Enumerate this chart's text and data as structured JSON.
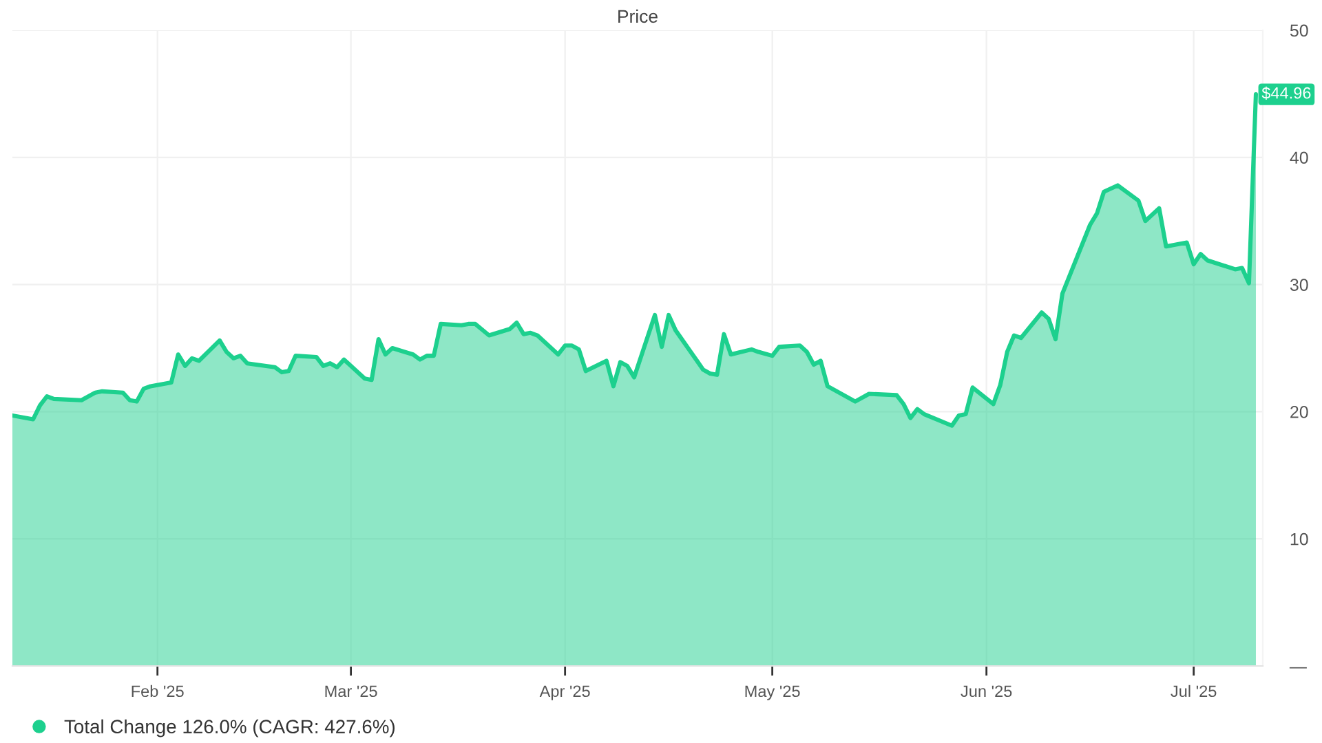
{
  "chart_data": {
    "type": "area",
    "title": "Price",
    "x": [
      "2025-01-11",
      "2025-01-14",
      "2025-01-15",
      "2025-01-16",
      "2025-01-17",
      "2025-01-21",
      "2025-01-23",
      "2025-01-24",
      "2025-01-27",
      "2025-01-28",
      "2025-01-29",
      "2025-01-30",
      "2025-01-31",
      "2025-02-03",
      "2025-02-04",
      "2025-02-05",
      "2025-02-06",
      "2025-02-07",
      "2025-02-10",
      "2025-02-11",
      "2025-02-12",
      "2025-02-13",
      "2025-02-14",
      "2025-02-18",
      "2025-02-19",
      "2025-02-20",
      "2025-02-21",
      "2025-02-24",
      "2025-02-25",
      "2025-02-26",
      "2025-02-27",
      "2025-02-28",
      "2025-03-03",
      "2025-03-04",
      "2025-03-05",
      "2025-03-06",
      "2025-03-07",
      "2025-03-10",
      "2025-03-11",
      "2025-03-12",
      "2025-03-13",
      "2025-03-14",
      "2025-03-17",
      "2025-03-18",
      "2025-03-19",
      "2025-03-21",
      "2025-03-24",
      "2025-03-25",
      "2025-03-26",
      "2025-03-27",
      "2025-03-28",
      "2025-03-31",
      "2025-04-01",
      "2025-04-02",
      "2025-04-03",
      "2025-04-04",
      "2025-04-07",
      "2025-04-08",
      "2025-04-09",
      "2025-04-10",
      "2025-04-11",
      "2025-04-14",
      "2025-04-15",
      "2025-04-16",
      "2025-04-17",
      "2025-04-21",
      "2025-04-22",
      "2025-04-23",
      "2025-04-24",
      "2025-04-25",
      "2025-04-28",
      "2025-04-29",
      "2025-05-01",
      "2025-05-02",
      "2025-05-05",
      "2025-05-06",
      "2025-05-07",
      "2025-05-08",
      "2025-05-09",
      "2025-05-13",
      "2025-05-15",
      "2025-05-19",
      "2025-05-20",
      "2025-05-21",
      "2025-05-22",
      "2025-05-23",
      "2025-05-27",
      "2025-05-28",
      "2025-05-29",
      "2025-05-30",
      "2025-06-02",
      "2025-06-03",
      "2025-06-04",
      "2025-06-05",
      "2025-06-06",
      "2025-06-09",
      "2025-06-10",
      "2025-06-11",
      "2025-06-12",
      "2025-06-16",
      "2025-06-17",
      "2025-06-18",
      "2025-06-20",
      "2025-06-23",
      "2025-06-24",
      "2025-06-26",
      "2025-06-27",
      "2025-06-30",
      "2025-07-01",
      "2025-07-02",
      "2025-07-03",
      "2025-07-07",
      "2025-07-08",
      "2025-07-09",
      "2025-07-10"
    ],
    "series": [
      {
        "name": "Total Change 126.0% (CAGR: 427.6%)",
        "color": "#1dd08e",
        "values": [
          19.7,
          19.4,
          20.5,
          21.2,
          21.0,
          20.9,
          21.5,
          21.6,
          21.5,
          20.9,
          20.8,
          21.8,
          22.0,
          22.3,
          24.5,
          23.6,
          24.2,
          24.0,
          25.6,
          24.7,
          24.2,
          24.4,
          23.8,
          23.5,
          23.1,
          23.2,
          24.4,
          24.3,
          23.6,
          23.8,
          23.5,
          24.1,
          22.6,
          22.5,
          25.7,
          24.5,
          25.0,
          24.5,
          24.1,
          24.4,
          24.4,
          26.9,
          26.8,
          26.9,
          26.9,
          26.0,
          26.5,
          27.0,
          26.1,
          26.2,
          26.0,
          24.5,
          25.2,
          25.2,
          24.9,
          23.2,
          24.0,
          22.0,
          23.9,
          23.6,
          22.7,
          27.6,
          25.1,
          27.6,
          26.4,
          23.3,
          23.0,
          22.9,
          26.1,
          24.5,
          24.9,
          24.7,
          24.4,
          25.1,
          25.2,
          24.7,
          23.7,
          24.0,
          22.0,
          20.8,
          21.4,
          21.3,
          20.6,
          19.5,
          20.2,
          19.8,
          18.9,
          19.7,
          19.8,
          21.9,
          20.6,
          22.1,
          24.7,
          26.0,
          25.8,
          27.8,
          27.3,
          25.7,
          29.3,
          34.7,
          35.6,
          37.3,
          37.8,
          36.6,
          35.0,
          36.0,
          33.0,
          33.3,
          31.6,
          32.4,
          31.9,
          31.2,
          31.3,
          30.1,
          44.96
        ]
      }
    ],
    "xlim": [
      "2025-01-11",
      "2025-07-11"
    ],
    "xticks": [
      {
        "value": "2025-02-01",
        "label": "Feb '25"
      },
      {
        "value": "2025-03-01",
        "label": "Mar '25"
      },
      {
        "value": "2025-04-01",
        "label": "Apr '25"
      },
      {
        "value": "2025-05-01",
        "label": "May '25"
      },
      {
        "value": "2025-06-01",
        "label": "Jun '25"
      },
      {
        "value": "2025-07-01",
        "label": "Jul '25"
      }
    ],
    "ylim": [
      0,
      50
    ],
    "yticks": [
      {
        "value": 0,
        "label": "—"
      },
      10,
      20,
      30,
      40,
      50
    ],
    "grid": true,
    "legend": "bottom left",
    "annotations": [
      {
        "text": "$44.96",
        "x": "2025-07-10",
        "y": 44.96
      }
    ]
  }
}
